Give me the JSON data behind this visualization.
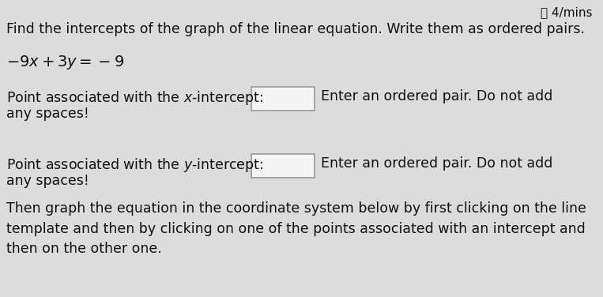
{
  "background_color": "#dcdcdc",
  "timer_text": "⧖ 4/mins",
  "title_text": "Find the intercepts of the graph of the linear equation. Write them as ordered pairs.",
  "equation": "$-9x + 3y = -9$",
  "x_intercept_label": "Point associated with the $x$-intercept:",
  "x_intercept_right": "Enter an ordered pair. Do not add",
  "x_intercept_right2": "any spaces!",
  "y_intercept_label": "Point associated with the $y$-intercept:",
  "y_intercept_right": "Enter an ordered pair. Do not add",
  "y_intercept_right2": "any spaces!",
  "bottom_text": "Then graph the equation in the coordinate system below by first clicking on the line\ntemplate and then by clicking on one of the points associated with an intercept and\nthen on the other one.",
  "font_size_title": 12.5,
  "font_size_body": 12.5,
  "font_size_timer": 11,
  "font_size_eq": 14,
  "text_color": "#111111",
  "box_color": "#f5f5f5",
  "box_edge_color": "#999999"
}
